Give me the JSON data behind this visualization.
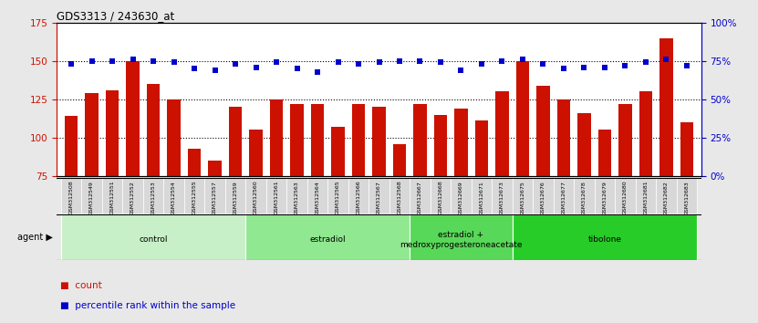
{
  "title": "GDS3313 / 243630_at",
  "samples": [
    "GSM312508",
    "GSM312549",
    "GSM312551",
    "GSM312552",
    "GSM312553",
    "GSM312554",
    "GSM312555",
    "GSM312557",
    "GSM312559",
    "GSM312560",
    "GSM312561",
    "GSM312563",
    "GSM312564",
    "GSM312565",
    "GSM312566",
    "GSM312567",
    "GSM312568",
    "GSM312667",
    "GSM312668",
    "GSM312669",
    "GSM312671",
    "GSM312673",
    "GSM312675",
    "GSM312676",
    "GSM312677",
    "GSM312678",
    "GSM312679",
    "GSM312680",
    "GSM312681",
    "GSM312682",
    "GSM312683"
  ],
  "counts": [
    114,
    129,
    131,
    150,
    135,
    125,
    93,
    85,
    120,
    105,
    125,
    122,
    122,
    107,
    122,
    120,
    96,
    122,
    115,
    119,
    111,
    130,
    150,
    134,
    125,
    116,
    105,
    122,
    130,
    165,
    110
  ],
  "percentiles": [
    73,
    75,
    75,
    76,
    75,
    74,
    70,
    69,
    73,
    71,
    74,
    70,
    68,
    74,
    73,
    74,
    75,
    75,
    74,
    69,
    73,
    75,
    76,
    73,
    70,
    71,
    71,
    72,
    74,
    76,
    72
  ],
  "groups": [
    {
      "name": "control",
      "start": 0,
      "end": 9,
      "color": "#c8f0c8"
    },
    {
      "name": "estradiol",
      "start": 9,
      "end": 17,
      "color": "#90e890"
    },
    {
      "name": "estradiol +\nmedroxyprogesteroneacetate",
      "start": 17,
      "end": 22,
      "color": "#58d858"
    },
    {
      "name": "tibolone",
      "start": 22,
      "end": 31,
      "color": "#28cc28"
    }
  ],
  "bar_color": "#cc1100",
  "dot_color": "#0000cc",
  "ylim_left": [
    75,
    175
  ],
  "ylim_right": [
    0,
    100
  ],
  "yticks_left": [
    75,
    100,
    125,
    150,
    175
  ],
  "yticks_right": [
    0,
    25,
    50,
    75,
    100
  ],
  "background_color": "#e8e8e8",
  "plot_bg_color": "#ffffff",
  "tick_label_bg": "#d8d8d8"
}
